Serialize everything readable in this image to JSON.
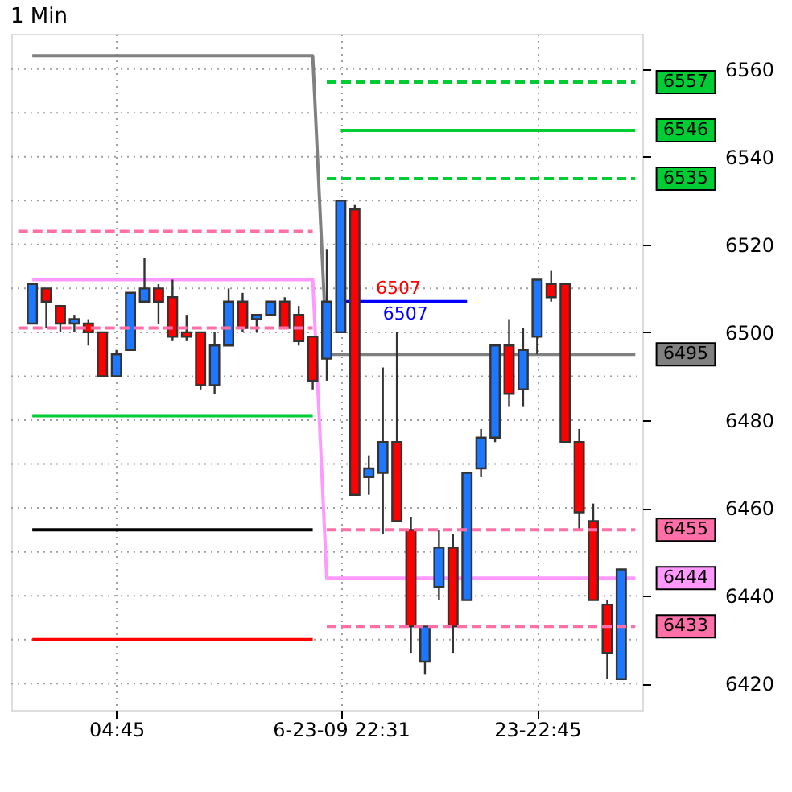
{
  "chart_data": {
    "type": "candlestick",
    "title": "1 Min",
    "categories": [
      null,
      null,
      null,
      null,
      null,
      null,
      null,
      "04:45",
      null,
      null,
      null,
      null,
      null,
      null,
      null,
      null,
      null,
      null,
      null,
      null,
      null,
      null,
      null,
      "6-23-09 22:31",
      null,
      null,
      null,
      null,
      null,
      null,
      null,
      null,
      null,
      null,
      null,
      null,
      null,
      "23-22:45",
      null,
      null,
      null,
      null,
      null,
      null,
      null
    ],
    "ohlc": [
      null,
      [
        6502,
        6511,
        6502,
        6511
      ],
      [
        6510,
        6510,
        6501,
        6507
      ],
      [
        6506,
        6506,
        6500,
        6502
      ],
      [
        6502,
        6504,
        6500,
        6503
      ],
      [
        6502,
        6503,
        6497,
        6500
      ],
      [
        6500,
        6500,
        6490,
        6490
      ],
      [
        6490,
        6496,
        6490,
        6495
      ],
      [
        6496,
        6509,
        6496,
        6509
      ],
      [
        6507,
        6517,
        6507,
        6510
      ],
      [
        6510,
        6511,
        6502,
        6507
      ],
      [
        6508,
        6512,
        6498,
        6499
      ],
      [
        6500,
        6504,
        6498,
        6499
      ],
      [
        6500,
        6500,
        6487,
        6488
      ],
      [
        6488,
        6500,
        6486,
        6497
      ],
      [
        6497,
        6510,
        6497,
        6507
      ],
      [
        6507,
        6509,
        6500,
        6501
      ],
      [
        6503,
        6504,
        6500,
        6504
      ],
      [
        6504,
        6507,
        6504,
        6507
      ],
      [
        6507,
        6508,
        6501,
        6501
      ],
      [
        6504,
        6506,
        6497,
        6498
      ],
      [
        6499,
        6499,
        6487,
        6489
      ],
      [
        6494,
        6519,
        6489,
        6507
      ],
      [
        6500,
        6530,
        6500,
        6530
      ],
      [
        6528,
        6529,
        6463,
        6463
      ],
      [
        6467,
        6472,
        6463,
        6469
      ],
      [
        6468,
        6492,
        6454,
        6475
      ],
      [
        6475,
        6500,
        6457,
        6457
      ],
      [
        6455,
        6458,
        6427,
        6433
      ],
      [
        6425,
        6433,
        6422,
        6433
      ],
      [
        6442,
        6455,
        6439,
        6451
      ],
      [
        6451,
        6454,
        6427,
        6433
      ],
      [
        6439,
        6468,
        6439,
        6468
      ],
      [
        6469,
        6478,
        6467,
        6476
      ],
      [
        6476,
        6497,
        6475,
        6497
      ],
      [
        6497,
        6503,
        6483,
        6486
      ],
      [
        6487,
        6501,
        6483,
        6496
      ],
      [
        6499,
        6512,
        6495,
        6512
      ],
      [
        6511,
        6514,
        6507,
        6508
      ],
      [
        6511,
        6511,
        6475,
        6475
      ],
      [
        6475,
        6478,
        6455,
        6459
      ],
      [
        6457,
        6461,
        6439,
        6439
      ],
      [
        6438,
        6439,
        6421,
        6427
      ],
      [
        6421,
        6446,
        6421,
        6446
      ],
      null
    ],
    "colors": [
      null,
      "#1e78ff",
      "#ff0000",
      "#ff0000",
      "#1e78ff",
      "#ff0000",
      "#ff0000",
      "#1e78ff",
      "#1e78ff",
      "#1e78ff",
      "#ff0000",
      "#ff0000",
      "#ff0000",
      "#ff0000",
      "#1e78ff",
      "#1e78ff",
      "#ff0000",
      "#1e78ff",
      "#1e78ff",
      "#ff0000",
      "#ff0000",
      "#ff0000",
      "#1e78ff",
      "#1e78ff",
      "#ff0000",
      "#1e78ff",
      "#1e78ff",
      "#ff0000",
      "#ff0000",
      "#1e78ff",
      "#1e78ff",
      "#ff0000",
      "#1e78ff",
      "#1e78ff",
      "#1e78ff",
      "#ff0000",
      "#1e78ff",
      "#1e78ff",
      "#ff0000",
      "#ff0000",
      "#ff0000",
      "#ff0000",
      "#ff0000",
      "#1e78ff",
      null
    ],
    "series": [
      {
        "type": "line",
        "color": "#808080",
        "line_style": "solid",
        "values": [
          null,
          6563,
          6563,
          6563,
          6563,
          6563,
          6563,
          6563,
          6563,
          6563,
          6563,
          6563,
          6563,
          6563,
          6563,
          6563,
          6563,
          6563,
          6563,
          6563,
          6563,
          6563,
          6495,
          6495,
          6495,
          6495,
          6495,
          6495,
          6495,
          6495,
          6495,
          6495,
          6495,
          6495,
          6495,
          6495,
          6495,
          6495,
          6495,
          6495,
          6495,
          6495,
          6495,
          6495,
          6495
        ],
        "value_labels": [
          null,
          null,
          null,
          null,
          null,
          null,
          null,
          null,
          null,
          null,
          null,
          null,
          null,
          null,
          null,
          null,
          null,
          null,
          null,
          null,
          null,
          null,
          null,
          null,
          null,
          null,
          null,
          null,
          null,
          null,
          null,
          null,
          null,
          null,
          null,
          null,
          null,
          null,
          null,
          null,
          null,
          null,
          null,
          null,
          "6495"
        ]
      },
      {
        "type": "line",
        "color": "#ff99ff",
        "line_style": "solid",
        "values": [
          null,
          6512,
          6512,
          6512,
          6512,
          6512,
          6512,
          6512,
          6512,
          6512,
          6512,
          6512,
          6512,
          6512,
          6512,
          6512,
          6512,
          6512,
          6512,
          6512,
          6512,
          6512,
          6444,
          6444,
          6444,
          6444,
          6444,
          6444,
          6444,
          6444,
          6444,
          6444,
          6444,
          6444,
          6444,
          6444,
          6444,
          6444,
          6444,
          6444,
          6444,
          6444,
          6444,
          6444,
          6444
        ],
        "value_labels": [
          null,
          null,
          null,
          null,
          null,
          null,
          null,
          null,
          null,
          null,
          null,
          null,
          null,
          null,
          null,
          null,
          null,
          null,
          null,
          null,
          null,
          null,
          null,
          null,
          null,
          null,
          null,
          null,
          null,
          null,
          null,
          null,
          null,
          null,
          null,
          null,
          null,
          null,
          null,
          null,
          null,
          null,
          null,
          null,
          "6444"
        ]
      },
      {
        "type": "line",
        "color": "#ff70a8",
        "line_style": "dashed",
        "values": [
          6523,
          6523,
          6523,
          6523,
          6523,
          6523,
          6523,
          6523,
          6523,
          6523,
          6523,
          6523,
          6523,
          6523,
          6523,
          6523,
          6523,
          6523,
          6523,
          6523,
          6523,
          6523,
          null,
          null,
          null,
          null,
          null,
          null,
          null,
          null,
          null,
          null,
          null,
          null,
          null,
          null,
          null,
          null,
          null,
          null,
          null,
          null,
          null,
          null,
          null
        ]
      },
      {
        "type": "line",
        "color": "#ff70a8",
        "line_style": "dashed",
        "values": [
          6501,
          6501,
          6501,
          6501,
          6501,
          6501,
          6501,
          6501,
          6501,
          6501,
          6501,
          6501,
          6501,
          6501,
          6501,
          6501,
          6501,
          6501,
          6501,
          6501,
          6501,
          6501,
          null,
          null,
          null,
          null,
          null,
          null,
          null,
          null,
          null,
          null,
          null,
          null,
          null,
          null,
          null,
          null,
          null,
          null,
          null,
          null,
          null,
          null,
          null
        ]
      },
      {
        "type": "line",
        "color": "#ff70a8",
        "line_style": "dashed",
        "values": [
          null,
          null,
          null,
          null,
          null,
          null,
          null,
          null,
          null,
          null,
          null,
          null,
          null,
          null,
          null,
          null,
          null,
          null,
          null,
          null,
          null,
          null,
          6455,
          6455,
          6455,
          6455,
          6455,
          6455,
          6455,
          6455,
          6455,
          6455,
          6455,
          6455,
          6455,
          6455,
          6455,
          6455,
          6455,
          6455,
          6455,
          6455,
          6455,
          6455,
          6455
        ],
        "value_labels": [
          null,
          null,
          null,
          null,
          null,
          null,
          null,
          null,
          null,
          null,
          null,
          null,
          null,
          null,
          null,
          null,
          null,
          null,
          null,
          null,
          null,
          null,
          null,
          null,
          null,
          null,
          null,
          null,
          null,
          null,
          null,
          null,
          null,
          null,
          null,
          null,
          null,
          null,
          null,
          null,
          null,
          null,
          null,
          null,
          "6455"
        ]
      },
      {
        "type": "line",
        "color": "#ff70a8",
        "line_style": "dashed",
        "values": [
          null,
          null,
          null,
          null,
          null,
          null,
          null,
          null,
          null,
          null,
          null,
          null,
          null,
          null,
          null,
          null,
          null,
          null,
          null,
          null,
          null,
          null,
          6433,
          6433,
          6433,
          6433,
          6433,
          6433,
          6433,
          6433,
          6433,
          6433,
          6433,
          6433,
          6433,
          6433,
          6433,
          6433,
          6433,
          6433,
          6433,
          6433,
          6433,
          6433,
          6433
        ],
        "value_labels": [
          null,
          null,
          null,
          null,
          null,
          null,
          null,
          null,
          null,
          null,
          null,
          null,
          null,
          null,
          null,
          null,
          null,
          null,
          null,
          null,
          null,
          null,
          null,
          null,
          null,
          null,
          null,
          null,
          null,
          null,
          null,
          null,
          null,
          null,
          null,
          null,
          null,
          null,
          null,
          null,
          null,
          null,
          null,
          null,
          "6433"
        ]
      },
      {
        "type": "line",
        "color": "#00cc33",
        "line_style": "dashed",
        "values": [
          null,
          null,
          null,
          null,
          null,
          null,
          null,
          null,
          null,
          null,
          null,
          null,
          null,
          null,
          null,
          null,
          null,
          null,
          null,
          null,
          null,
          null,
          6557,
          6557,
          6557,
          6557,
          6557,
          6557,
          6557,
          6557,
          6557,
          6557,
          6557,
          6557,
          6557,
          6557,
          6557,
          6557,
          6557,
          6557,
          6557,
          6557,
          6557,
          6557,
          6557
        ],
        "value_labels": [
          null,
          null,
          null,
          null,
          null,
          null,
          null,
          null,
          null,
          null,
          null,
          null,
          null,
          null,
          null,
          null,
          null,
          null,
          null,
          null,
          null,
          null,
          null,
          null,
          null,
          null,
          null,
          null,
          null,
          null,
          null,
          null,
          null,
          null,
          null,
          null,
          null,
          null,
          null,
          null,
          null,
          null,
          null,
          null,
          "6557"
        ]
      },
      {
        "type": "line",
        "color": "#00cc33",
        "line_style": "dashed",
        "values": [
          null,
          null,
          null,
          null,
          null,
          null,
          null,
          null,
          null,
          null,
          null,
          null,
          null,
          null,
          null,
          null,
          null,
          null,
          null,
          null,
          null,
          null,
          6535,
          6535,
          6535,
          6535,
          6535,
          6535,
          6535,
          6535,
          6535,
          6535,
          6535,
          6535,
          6535,
          6535,
          6535,
          6535,
          6535,
          6535,
          6535,
          6535,
          6535,
          6535,
          6535
        ],
        "value_labels": [
          null,
          null,
          null,
          null,
          null,
          null,
          null,
          null,
          null,
          null,
          null,
          null,
          null,
          null,
          null,
          null,
          null,
          null,
          null,
          null,
          null,
          null,
          null,
          null,
          null,
          null,
          null,
          null,
          null,
          null,
          null,
          null,
          null,
          null,
          null,
          null,
          null,
          null,
          null,
          null,
          null,
          null,
          null,
          null,
          "6535"
        ]
      },
      {
        "type": "line",
        "color": "#00cc33",
        "line_style": "solid",
        "values": [
          null,
          6481,
          6481,
          6481,
          6481,
          6481,
          6481,
          6481,
          6481,
          6481,
          6481,
          6481,
          6481,
          6481,
          6481,
          6481,
          6481,
          6481,
          6481,
          6481,
          6481,
          6481,
          null,
          6546,
          6546,
          6546,
          6546,
          6546,
          6546,
          6546,
          6546,
          6546,
          6546,
          6546,
          6546,
          6546,
          6546,
          6546,
          6546,
          6546,
          6546,
          6546,
          6546,
          6546,
          6546
        ],
        "value_labels": [
          null,
          null,
          null,
          null,
          null,
          null,
          null,
          null,
          null,
          null,
          null,
          null,
          null,
          null,
          null,
          null,
          null,
          null,
          null,
          null,
          null,
          null,
          null,
          null,
          null,
          null,
          null,
          null,
          null,
          null,
          null,
          null,
          null,
          null,
          null,
          null,
          null,
          null,
          null,
          null,
          null,
          null,
          null,
          null,
          "6546"
        ]
      },
      {
        "type": "line",
        "color": "#000000",
        "line_style": "solid",
        "values": [
          null,
          6455,
          6455,
          6455,
          6455,
          6455,
          6455,
          6455,
          6455,
          6455,
          6455,
          6455,
          6455,
          6455,
          6455,
          6455,
          6455,
          6455,
          6455,
          6455,
          6455,
          6455,
          null,
          null,
          null,
          null,
          null,
          null,
          null,
          null,
          null,
          null,
          null,
          null,
          null,
          null,
          null,
          null,
          null,
          null,
          null,
          null,
          null,
          null,
          null
        ]
      },
      {
        "type": "line",
        "color": "#ff0000",
        "line_style": "solid",
        "values": [
          null,
          6430,
          6430,
          6430,
          6430,
          6430,
          6430,
          6430,
          6430,
          6430,
          6430,
          6430,
          6430,
          6430,
          6430,
          6430,
          6430,
          6430,
          6430,
          6430,
          6430,
          6430,
          null,
          null,
          null,
          null,
          null,
          null,
          null,
          null,
          null,
          null,
          null,
          null,
          null,
          null,
          null,
          null,
          null,
          null,
          null,
          null,
          null,
          null,
          null
        ]
      },
      {
        "type": "line",
        "color": "#0000ff",
        "line_style": "solid",
        "values": [
          null,
          null,
          null,
          null,
          null,
          null,
          null,
          null,
          null,
          null,
          null,
          null,
          null,
          null,
          null,
          null,
          null,
          null,
          null,
          null,
          null,
          null,
          null,
          6507,
          6507,
          6507,
          6507,
          6507,
          6507,
          6507,
          6507,
          6507,
          6507,
          null,
          null,
          null,
          null,
          null,
          null,
          null,
          null,
          null,
          null,
          null,
          null
        ],
        "value_labels": [
          null,
          null,
          null,
          null,
          null,
          null,
          null,
          null,
          null,
          null,
          null,
          null,
          null,
          null,
          null,
          null,
          null,
          null,
          null,
          null,
          null,
          null,
          null,
          null,
          null,
          null,
          "6507",
          null,
          null,
          null,
          null,
          null,
          null,
          null,
          null,
          null,
          null,
          null,
          null,
          null,
          null,
          null,
          null,
          null,
          null
        ]
      }
    ],
    "annotations": [
      {
        "text": "6507",
        "y": 6507
      }
    ],
    "ylim": [
      6414,
      6568
    ],
    "yticks": [
      6420,
      {
        "value": 6430,
        "label": null
      },
      6440,
      {
        "value": 6450,
        "label": null
      },
      6460,
      {
        "value": 6470,
        "label": null
      },
      6480,
      {
        "value": 6490,
        "label": null
      },
      6500,
      {
        "value": 6510,
        "label": null
      },
      6520,
      {
        "value": 6530,
        "label": null
      },
      6540,
      {
        "value": 6550,
        "label": null
      },
      6560
    ],
    "grid": true,
    "marker": "none"
  }
}
